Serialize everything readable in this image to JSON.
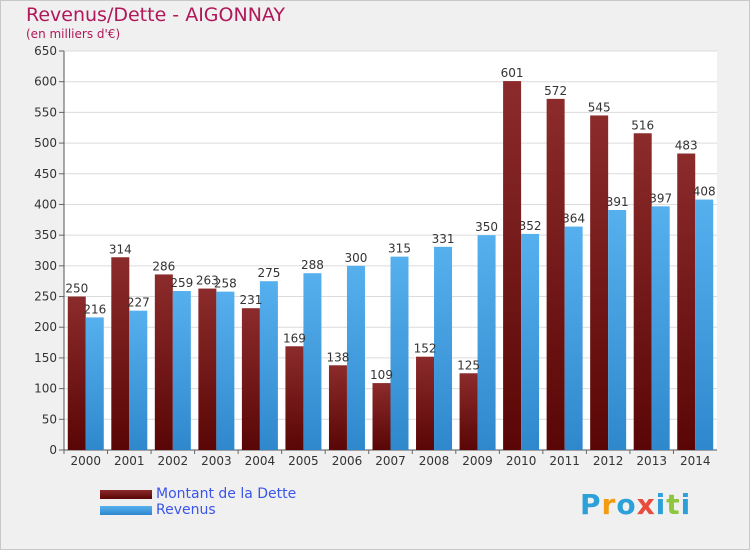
{
  "header": {
    "title": "Revenus/Dette - AIGONNAY",
    "subtitle": "(en milliers d'€)"
  },
  "logo": {
    "text": "Proxiti",
    "letters": [
      "P",
      "r",
      "o",
      "x",
      "i",
      "t",
      "i"
    ],
    "colors": [
      "#2ea0d8",
      "#f39c12",
      "#2ea0d8",
      "#e74c3c",
      "#2ea0d8",
      "#8dc63f",
      "#2ea0d8"
    ]
  },
  "chart_data": {
    "type": "bar",
    "title": "Revenus/Dette - AIGONNAY",
    "subtitle": "(en milliers d'€)",
    "xlabel": "",
    "ylabel": "",
    "categories": [
      "2000",
      "2001",
      "2002",
      "2003",
      "2004",
      "2005",
      "2006",
      "2007",
      "2008",
      "2009",
      "2010",
      "2011",
      "2012",
      "2013",
      "2014"
    ],
    "series": [
      {
        "name": "Montant de la Dette",
        "color": "#7a1a1a",
        "values": [
          250,
          314,
          286,
          263,
          231,
          169,
          138,
          109,
          152,
          125,
          601,
          572,
          545,
          516,
          483
        ]
      },
      {
        "name": "Revenus",
        "color": "#4aa3e6",
        "values": [
          216,
          227,
          259,
          258,
          275,
          288,
          300,
          315,
          331,
          350,
          352,
          364,
          391,
          397,
          408
        ]
      }
    ],
    "ylim": [
      0,
      650
    ],
    "yticks": [
      0,
      50,
      100,
      150,
      200,
      250,
      300,
      350,
      400,
      450,
      500,
      550,
      600,
      650
    ],
    "grid": true,
    "legend_position": "bottom-left"
  }
}
